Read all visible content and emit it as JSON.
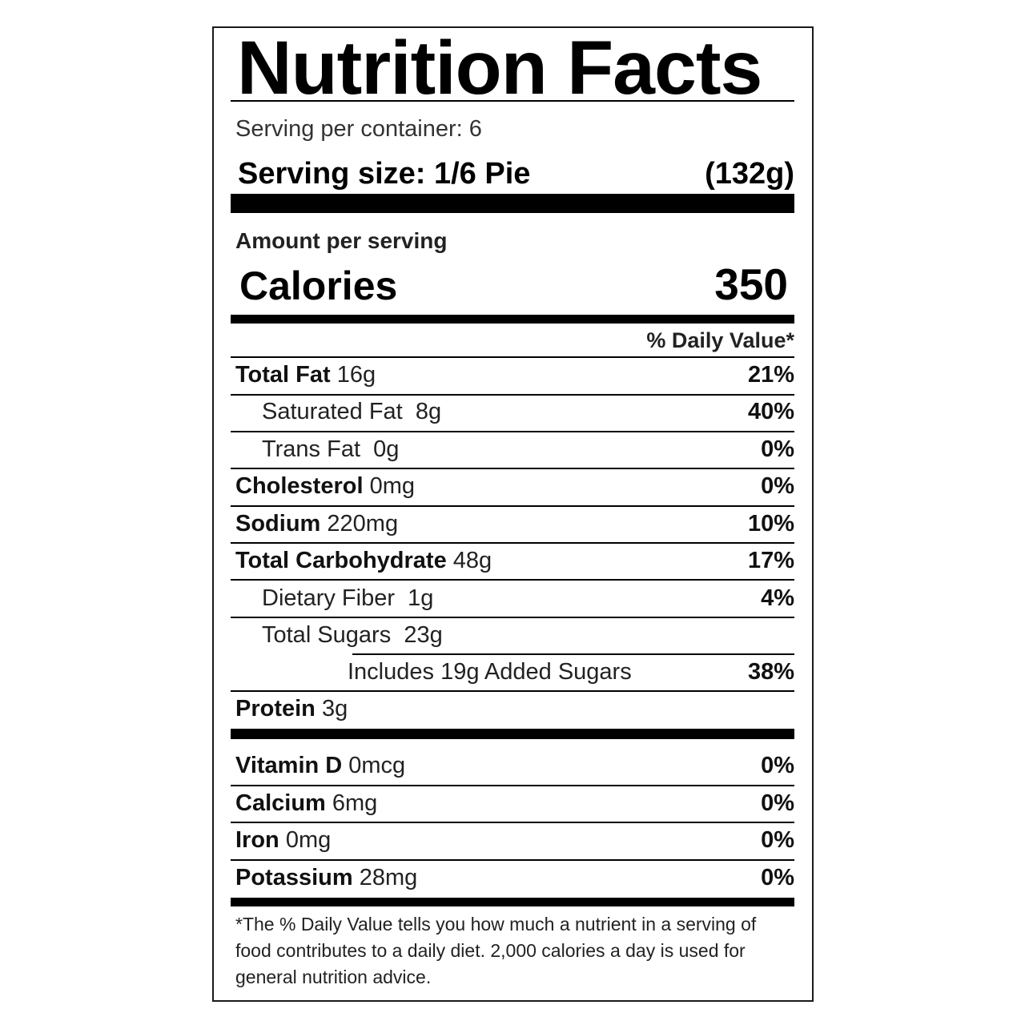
{
  "title": "Nutrition Facts",
  "servings_per_container": "Serving per container: 6",
  "serving_size_label": "Serving size: 1/6 Pie",
  "serving_size_grams": "(132g)",
  "amount_per_serving": "Amount per serving",
  "calories_label": "Calories",
  "calories_value": "350",
  "daily_value_header": "% Daily Value*",
  "nutrients": [
    {
      "name": "Total Fat",
      "amount": "16g",
      "dv": "21%"
    },
    {
      "name": "Saturated Fat",
      "amount": "8g",
      "dv": "40%"
    },
    {
      "name": "Trans Fat",
      "amount": "0g",
      "dv": "0%"
    },
    {
      "name": "Cholesterol",
      "amount": "0mg",
      "dv": "0%"
    },
    {
      "name": "Sodium",
      "amount": "220mg",
      "dv": "10%"
    },
    {
      "name": "Total Carbohydrate",
      "amount": "48g",
      "dv": "17%"
    },
    {
      "name": "Dietary Fiber",
      "amount": "1g",
      "dv": "4%"
    },
    {
      "name": "Total Sugars",
      "amount": "23g",
      "dv": ""
    },
    {
      "name": "Includes 19g Added Sugars",
      "amount": "",
      "dv": "38%"
    },
    {
      "name": "Protein",
      "amount": "3g",
      "dv": ""
    }
  ],
  "vitamins": [
    {
      "name": "Vitamin D",
      "amount": "0mcg",
      "dv": "0%"
    },
    {
      "name": "Calcium",
      "amount": "6mg",
      "dv": "0%"
    },
    {
      "name": "Iron",
      "amount": "0mg",
      "dv": "0%"
    },
    {
      "name": "Potassium",
      "amount": "28mg",
      "dv": "0%"
    }
  ],
  "footnote": "*The % Daily Value tells you how much a nutrient in a serving of food contributes to a daily diet. 2,000 calories a day is used for general nutrition advice."
}
